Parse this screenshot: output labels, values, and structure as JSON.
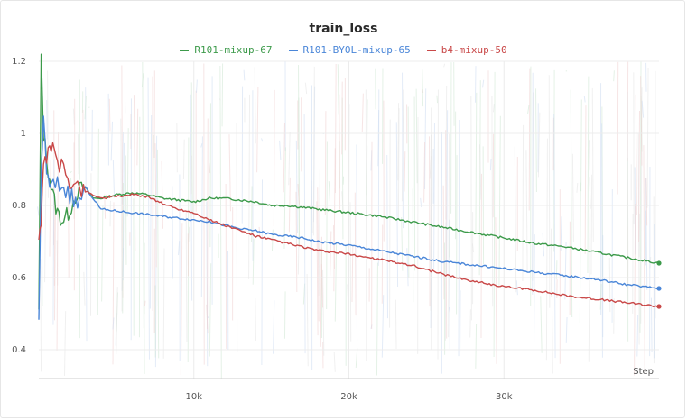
{
  "chart_data": {
    "type": "line",
    "title": "train_loss",
    "xlabel": "Step",
    "ylabel": "",
    "xlim": [
      0,
      40000
    ],
    "ylim": [
      0.32,
      1.2
    ],
    "x_ticks": [
      10000,
      20000,
      30000
    ],
    "x_tick_labels": [
      "10k",
      "20k",
      "30k"
    ],
    "y_ticks": [
      0.4,
      0.6,
      0.8,
      1,
      1.2
    ],
    "y_tick_labels": [
      "0.4",
      "0.6",
      "0.8",
      "1",
      "1.2"
    ],
    "grid": true,
    "legend_position": "top-center",
    "series": [
      {
        "name": "R101-mixup-67",
        "color": "#3c9a4a",
        "points": [
          [
            0,
            0.5
          ],
          [
            150,
            1.2
          ],
          [
            300,
            1.0
          ],
          [
            600,
            0.9
          ],
          [
            900,
            0.83
          ],
          [
            1200,
            0.78
          ],
          [
            1500,
            0.76
          ],
          [
            1800,
            0.77
          ],
          [
            2100,
            0.8
          ],
          [
            2500,
            0.84
          ],
          [
            3000,
            0.85
          ],
          [
            3500,
            0.82
          ],
          [
            4000,
            0.82
          ],
          [
            5000,
            0.83
          ],
          [
            6000,
            0.835
          ],
          [
            7000,
            0.83
          ],
          [
            8000,
            0.82
          ],
          [
            9000,
            0.815
          ],
          [
            10000,
            0.81
          ],
          [
            11000,
            0.82
          ],
          [
            12000,
            0.82
          ],
          [
            13000,
            0.815
          ],
          [
            14000,
            0.81
          ],
          [
            15000,
            0.8
          ],
          [
            16000,
            0.8
          ],
          [
            17000,
            0.795
          ],
          [
            18000,
            0.79
          ],
          [
            19000,
            0.785
          ],
          [
            20000,
            0.78
          ],
          [
            22000,
            0.77
          ],
          [
            24000,
            0.755
          ],
          [
            26000,
            0.74
          ],
          [
            28000,
            0.725
          ],
          [
            30000,
            0.71
          ],
          [
            32000,
            0.695
          ],
          [
            34000,
            0.685
          ],
          [
            36000,
            0.67
          ],
          [
            38000,
            0.655
          ],
          [
            40000,
            0.64
          ]
        ]
      },
      {
        "name": "R101-BYOL-mixup-65",
        "color": "#4a86d8",
        "points": [
          [
            0,
            0.46
          ],
          [
            150,
            0.9
          ],
          [
            300,
            1.05
          ],
          [
            500,
            0.88
          ],
          [
            800,
            0.85
          ],
          [
            1200,
            0.86
          ],
          [
            1600,
            0.85
          ],
          [
            2000,
            0.83
          ],
          [
            2500,
            0.8
          ],
          [
            3000,
            0.85
          ],
          [
            3500,
            0.82
          ],
          [
            4000,
            0.79
          ],
          [
            5000,
            0.785
          ],
          [
            6000,
            0.78
          ],
          [
            7000,
            0.775
          ],
          [
            8000,
            0.77
          ],
          [
            9000,
            0.765
          ],
          [
            10000,
            0.76
          ],
          [
            11000,
            0.755
          ],
          [
            12000,
            0.745
          ],
          [
            13000,
            0.735
          ],
          [
            14000,
            0.73
          ],
          [
            15000,
            0.72
          ],
          [
            16000,
            0.715
          ],
          [
            17000,
            0.71
          ],
          [
            18000,
            0.7
          ],
          [
            19000,
            0.695
          ],
          [
            20000,
            0.69
          ],
          [
            22000,
            0.675
          ],
          [
            24000,
            0.66
          ],
          [
            26000,
            0.645
          ],
          [
            28000,
            0.635
          ],
          [
            30000,
            0.625
          ],
          [
            32000,
            0.615
          ],
          [
            34000,
            0.605
          ],
          [
            36000,
            0.595
          ],
          [
            38000,
            0.58
          ],
          [
            40000,
            0.57
          ]
        ]
      },
      {
        "name": "b4-mixup-50",
        "color": "#c94848",
        "points": [
          [
            0,
            0.72
          ],
          [
            150,
            0.76
          ],
          [
            300,
            0.9
          ],
          [
            500,
            0.94
          ],
          [
            700,
            0.98
          ],
          [
            900,
            0.95
          ],
          [
            1200,
            0.92
          ],
          [
            1600,
            0.9
          ],
          [
            2000,
            0.87
          ],
          [
            2500,
            0.85
          ],
          [
            3000,
            0.84
          ],
          [
            3500,
            0.83
          ],
          [
            4000,
            0.82
          ],
          [
            5000,
            0.825
          ],
          [
            6000,
            0.83
          ],
          [
            7000,
            0.825
          ],
          [
            8000,
            0.805
          ],
          [
            9000,
            0.79
          ],
          [
            10000,
            0.78
          ],
          [
            11000,
            0.76
          ],
          [
            12000,
            0.745
          ],
          [
            13000,
            0.73
          ],
          [
            14000,
            0.715
          ],
          [
            15000,
            0.705
          ],
          [
            16000,
            0.695
          ],
          [
            17000,
            0.685
          ],
          [
            18000,
            0.675
          ],
          [
            20000,
            0.665
          ],
          [
            22000,
            0.65
          ],
          [
            24000,
            0.635
          ],
          [
            26000,
            0.61
          ],
          [
            28000,
            0.59
          ],
          [
            30000,
            0.575
          ],
          [
            32000,
            0.565
          ],
          [
            34000,
            0.55
          ],
          [
            36000,
            0.54
          ],
          [
            38000,
            0.53
          ],
          [
            40000,
            0.52
          ]
        ]
      }
    ]
  }
}
